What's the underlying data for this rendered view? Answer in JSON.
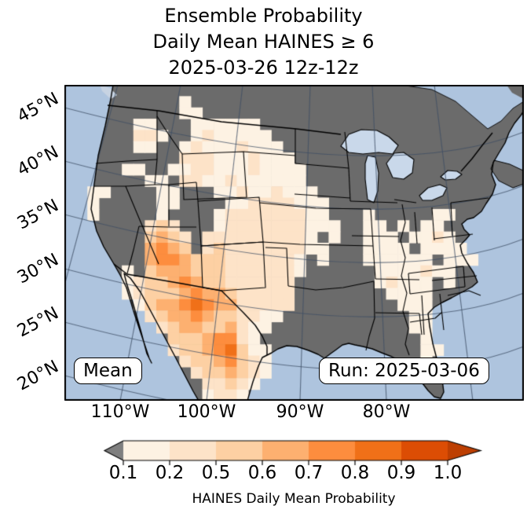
{
  "figure": {
    "title_line1": "Ensemble Probability",
    "title_line2": "Daily Mean HAINES ≥ 6",
    "title_line3": "2025-03-26 12z-12z"
  },
  "map": {
    "annotation_mean": "Mean",
    "annotation_run": "Run: 2025-03-06",
    "lat_ticks": [
      "45°N",
      "40°N",
      "35°N",
      "30°N",
      "25°N",
      "20°N"
    ],
    "lon_ticks": [
      "110°W",
      "100°W",
      "90°W",
      "80°W"
    ],
    "colors": {
      "ocean": "#aec4de",
      "lakes": "#c9d8ea",
      "land_nodata": "#6b6b6b",
      "island": "#c7d3e2",
      "graticule": "rgba(62,78,100,0.75)",
      "boundary": "#000000"
    }
  },
  "colorbar": {
    "label": "HAINES Daily Mean Probability",
    "tick_labels": [
      "0.1",
      "0.2",
      "0.5",
      "0.6",
      "0.7",
      "0.8",
      "0.9",
      "1.0"
    ],
    "segment_colors": [
      "#fdf2e3",
      "#fde3c8",
      "#fdd0a3",
      "#fdb070",
      "#fd8d3e",
      "#f07018",
      "#dc4d04"
    ],
    "under_arrow_color": "#7f7f7f",
    "over_arrow_color": "#bd3f02"
  },
  "chart_data": {
    "type": "heatmap",
    "title": "Ensemble Probability — Daily Mean HAINES ≥ 6 — 2025-03-26 12z-12z",
    "colorbar_label": "HAINES Daily Mean Probability",
    "levels": [
      0.1,
      0.2,
      0.5,
      0.6,
      0.7,
      0.8,
      0.9,
      1.0
    ],
    "colormap": "Oranges (gray under, dark orange over)",
    "lat_ticks_deg": [
      45,
      40,
      35,
      30,
      25,
      20
    ],
    "lon_ticks_deg": [
      -110,
      -100,
      -90,
      -80
    ],
    "annotations": [
      "Mean",
      "Run: 2025-03-06"
    ],
    "legend": "grid digits: 0 = no data (gray land); 1-7 = probability bins 0.1-0.2, 0.2-0.5, 0.5-0.6, 0.6-0.7, 0.7-0.8, 0.8-0.9, 0.9-1.0",
    "grid_cols": 40,
    "grid_rows_count": 28,
    "grid_rows": [
      "0000000000000000000000000000000000000000",
      "0000000000100000000000000000000000000000",
      "0000000000110000000000000000000000000000",
      "0000001100011111100000000000000000000000",
      "0000002210012111110000000000000000000000",
      "0000001100121112111000000000000000000000",
      "0000000000222111211100000000000000000000",
      "0000011001122111211110000000000000000000",
      "0000000110221121111110000000000000000000",
      "0011000011000112112111000000000000000000",
      "0010000011000011222211100000000000000000",
      "0010000010000122222221100010000011000000",
      "0000000232000122222221110011010110000000",
      "0000000343202222222221010011101121000000",
      "0000000454302322222221100011110111100000",
      "0000000455433322222210100011111101110000",
      "0000010344433322222210000001111211000000",
      "0000012334543322222200000001211101000000",
      "0000012333454432222200000000111100000000",
      "0000001344565442222200000000011100000000",
      "0000000234454332211000000000001100000000",
      "0000000023443342110000000000001100000000",
      "0000000003334552100000000000000100000000",
      "0000000002334563110000000000000110000000",
      "0000000000233453210000000000000100000000",
      "0000000000023343210000000000000000000000",
      "0000000000002232100000000000000000000000",
      "0000000000001221000000000000000000000000"
    ]
  }
}
